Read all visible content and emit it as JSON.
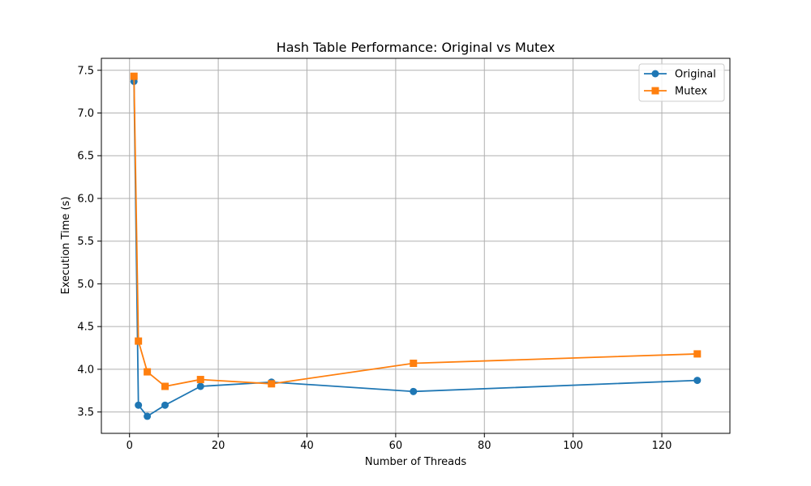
{
  "chart_data": {
    "type": "line",
    "title": "Hash Table Performance: Original vs Mutex",
    "xlabel": "Number of Threads",
    "ylabel": "Execution Time (s)",
    "xlim": [
      -6.35,
      135.35
    ],
    "ylim": [
      3.25,
      7.64
    ],
    "xticks": [
      0,
      20,
      40,
      60,
      80,
      100,
      120
    ],
    "xtick_labels": [
      "0",
      "20",
      "40",
      "60",
      "80",
      "100",
      "120"
    ],
    "yticks": [
      3.5,
      4.0,
      4.5,
      5.0,
      5.5,
      6.0,
      6.5,
      7.0,
      7.5
    ],
    "ytick_labels": [
      "3.5",
      "4.0",
      "4.5",
      "5.0",
      "5.5",
      "6.0",
      "6.5",
      "7.0",
      "7.5"
    ],
    "grid": true,
    "legend_position": "top-right",
    "series": [
      {
        "name": "Original",
        "color": "#1f77b4",
        "marker": "circle",
        "x": [
          1,
          2,
          4,
          8,
          16,
          32,
          64,
          128
        ],
        "y": [
          7.37,
          3.58,
          3.45,
          3.58,
          3.8,
          3.85,
          3.74,
          3.87
        ]
      },
      {
        "name": "Mutex",
        "color": "#ff7f0e",
        "marker": "square",
        "x": [
          1,
          2,
          4,
          8,
          16,
          32,
          64,
          128
        ],
        "y": [
          7.43,
          4.33,
          3.97,
          3.8,
          3.88,
          3.83,
          4.07,
          4.18
        ]
      }
    ]
  }
}
